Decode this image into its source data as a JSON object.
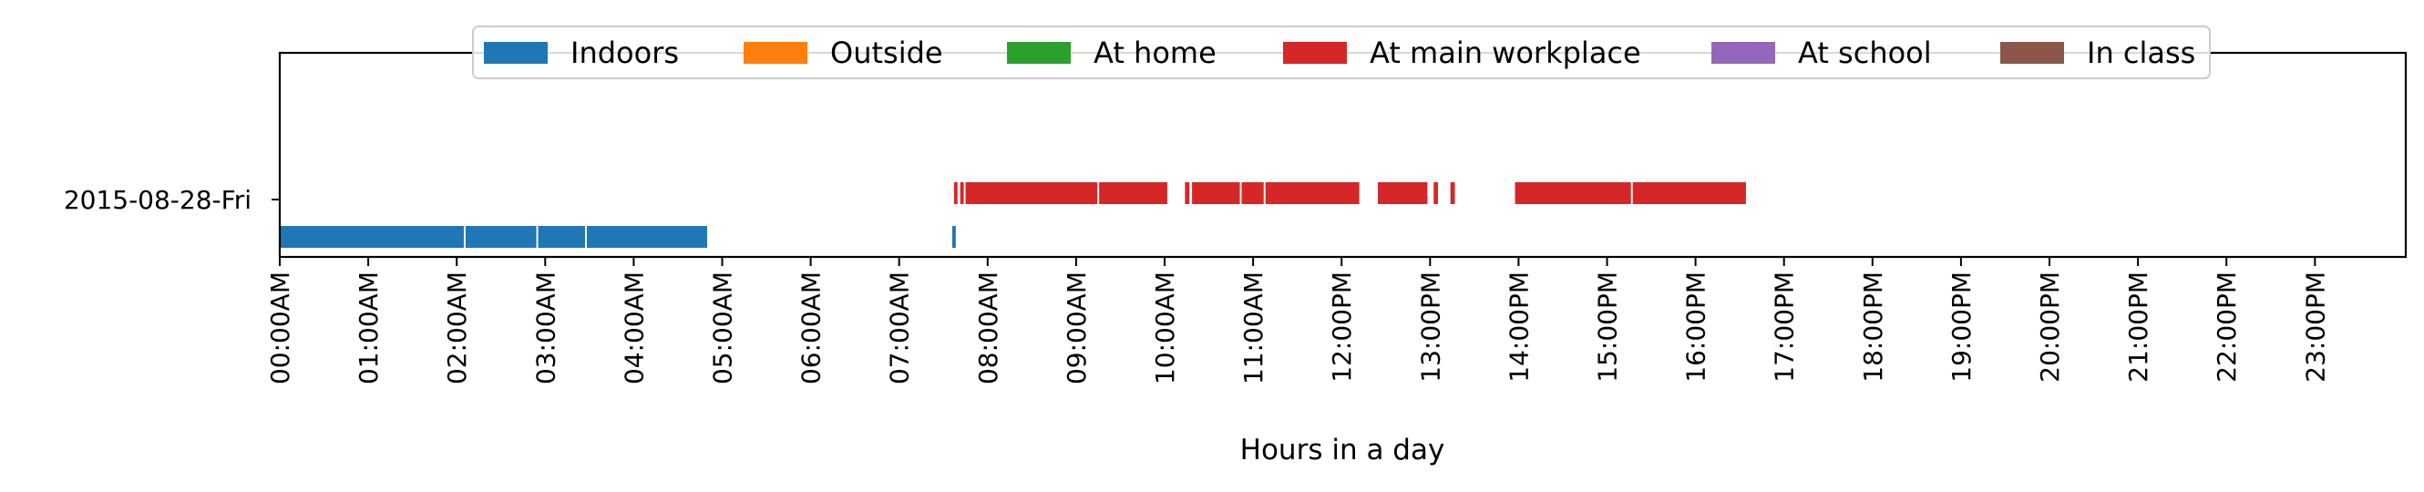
{
  "chart_data": {
    "type": "timeline",
    "xlabel": "Hours in a day",
    "xlim": [
      0,
      24
    ],
    "x_ticks": [
      "00:00AM",
      "01:00AM",
      "02:00AM",
      "03:00AM",
      "04:00AM",
      "05:00AM",
      "06:00AM",
      "07:00AM",
      "08:00AM",
      "09:00AM",
      "10:00AM",
      "11:00AM",
      "12:00PM",
      "13:00PM",
      "14:00PM",
      "15:00PM",
      "16:00PM",
      "17:00PM",
      "18:00PM",
      "19:00PM",
      "20:00PM",
      "21:00PM",
      "22:00PM",
      "23:00PM"
    ],
    "y_categories": [
      "2015-08-28-Fri"
    ],
    "legend": {
      "placement": "upper-center",
      "entries": [
        {
          "name": "Indoors",
          "color": "#1f77b4"
        },
        {
          "name": "Outside",
          "color": "#ff7f0e"
        },
        {
          "name": "At home",
          "color": "#2ca02c"
        },
        {
          "name": "At main workplace",
          "color": "#d62728"
        },
        {
          "name": "At school",
          "color": "#9467bd"
        },
        {
          "name": "In class",
          "color": "#8c564b"
        }
      ]
    },
    "series": [
      {
        "name": "Indoors",
        "day": "2015-08-28-Fri",
        "intervals": [
          [
            0.0,
            2.08
          ],
          [
            2.1,
            2.9
          ],
          [
            2.92,
            3.45
          ],
          [
            3.47,
            4.83
          ],
          [
            7.6,
            7.64
          ]
        ]
      },
      {
        "name": "At main workplace",
        "day": "2015-08-28-Fri",
        "intervals": [
          [
            7.62,
            7.66
          ],
          [
            7.69,
            7.73
          ],
          [
            7.75,
            9.24
          ],
          [
            9.26,
            10.03
          ],
          [
            10.23,
            10.28
          ],
          [
            10.31,
            10.85
          ],
          [
            10.87,
            11.12
          ],
          [
            11.14,
            12.2
          ],
          [
            12.41,
            12.97
          ],
          [
            13.04,
            13.09
          ],
          [
            13.23,
            13.28
          ],
          [
            13.96,
            15.27
          ],
          [
            15.29,
            16.57
          ]
        ]
      }
    ]
  }
}
